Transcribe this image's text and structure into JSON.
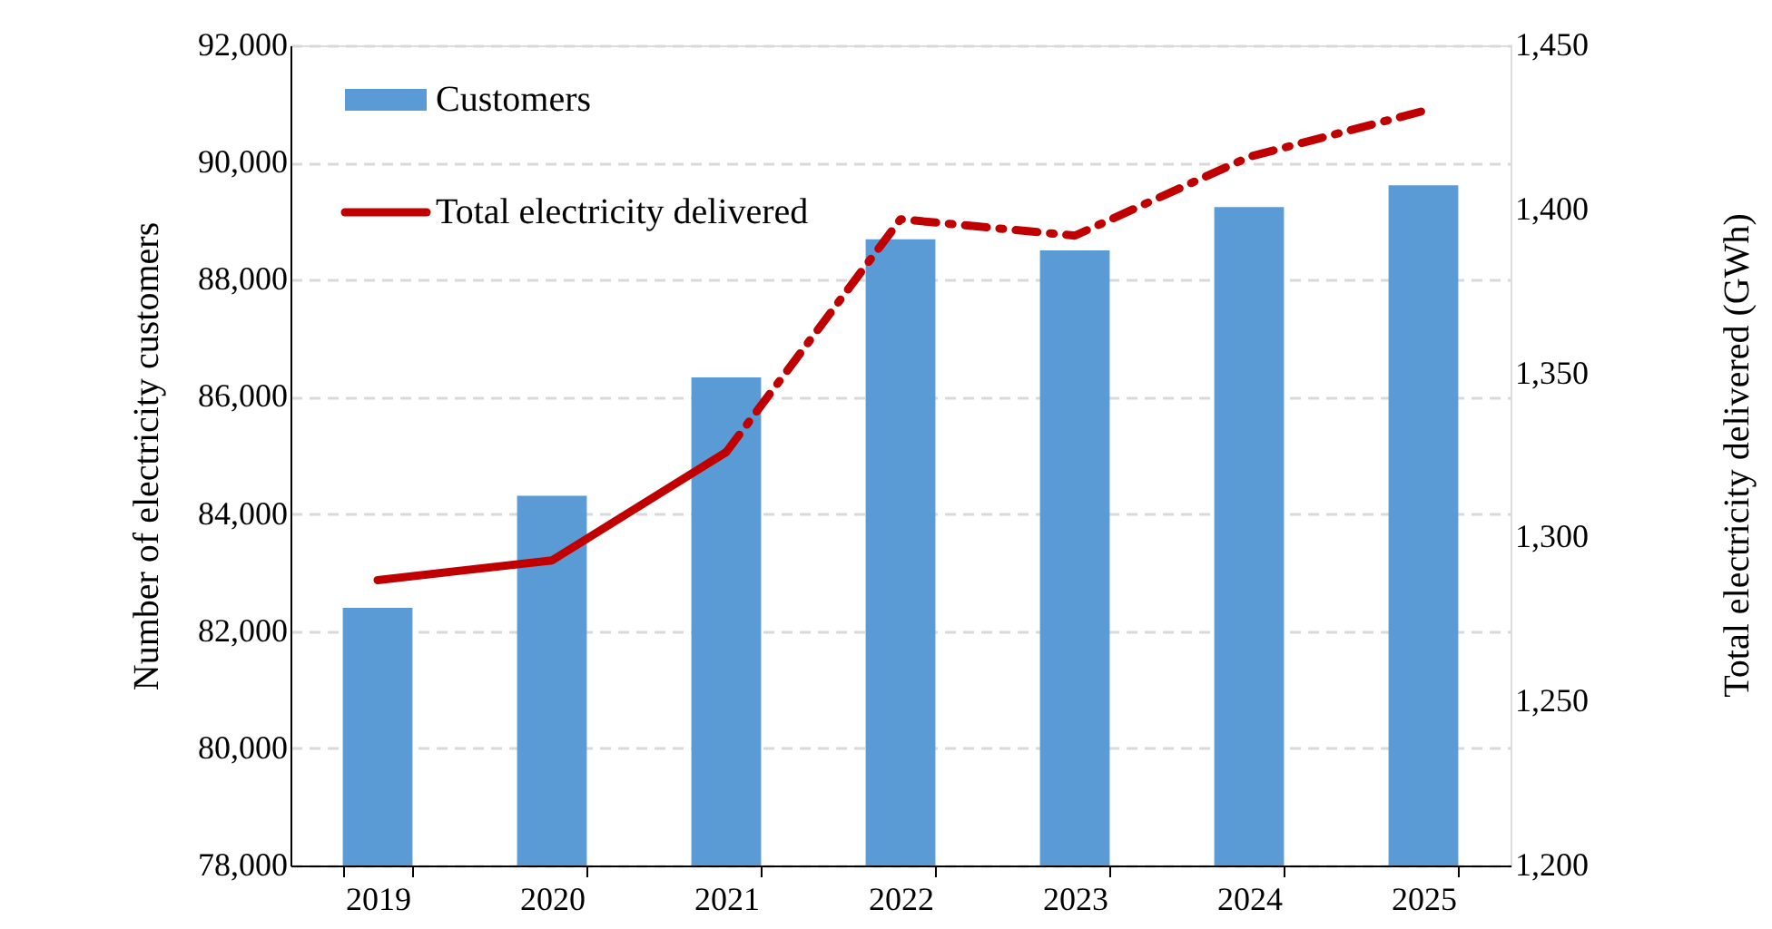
{
  "chart_data": {
    "type": "bar",
    "categories": [
      "2019",
      "2020",
      "2021",
      "2022",
      "2023",
      "2024",
      "2025"
    ],
    "series": [
      {
        "name": "Customers",
        "color": "#5b9bd5",
        "values": [
          82400,
          84310,
          86330,
          88690,
          88500,
          89240,
          89610
        ]
      },
      {
        "name": "Total electricity delivered",
        "type": "line",
        "axis": "y2",
        "color": "#c00000",
        "line_style": "solid",
        "values": [
          1287,
          1293,
          1326,
          null,
          null,
          null,
          null
        ]
      },
      {
        "type": "line",
        "axis": "y2",
        "color": "#c00000",
        "line_style": "dashed",
        "values": [
          null,
          null,
          1326,
          1397,
          1392,
          1416,
          1430
        ]
      }
    ],
    "ylabel": "Number of electricity customers",
    "y2label": "Total electricity delivered (GWh)",
    "ylim": [
      78000,
      92000
    ],
    "yticks": [
      {
        "value": 78000,
        "label": "78,000"
      },
      {
        "value": 80000,
        "label": "80,000"
      },
      {
        "value": 82000,
        "label": "82,000"
      },
      {
        "value": 84000,
        "label": "84,000"
      },
      {
        "value": 86000,
        "label": "86,000"
      },
      {
        "value": 88000,
        "label": "88,000"
      },
      {
        "value": 90000,
        "label": "90,000"
      },
      {
        "value": 92000,
        "label": "92,000"
      }
    ],
    "y2lim": [
      1200,
      1450
    ],
    "y2ticks": [
      {
        "value": 1200,
        "label": "1,200"
      },
      {
        "value": 1250,
        "label": "1,250"
      },
      {
        "value": 1300,
        "label": "1,300"
      },
      {
        "value": 1350,
        "label": "1,350"
      },
      {
        "value": 1400,
        "label": "1,400"
      },
      {
        "value": 1450,
        "label": "1,450"
      }
    ],
    "grid": "y",
    "legend": "top left"
  }
}
